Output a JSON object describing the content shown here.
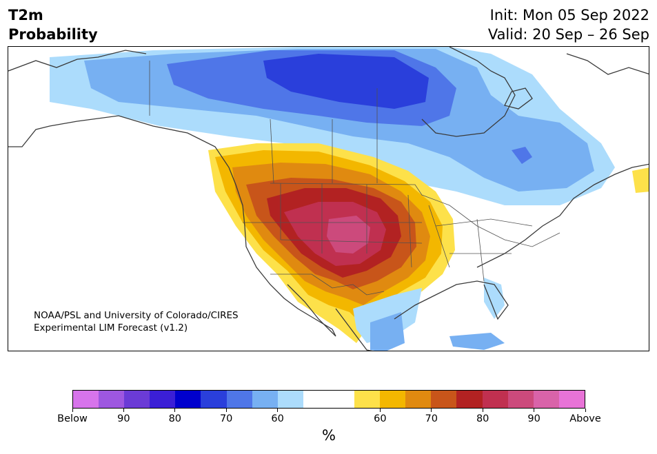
{
  "title": {
    "line1": "T2m",
    "line2": "Probability"
  },
  "dates": {
    "init": "Init: Mon 05 Sep 2022",
    "valid": "Valid: 20 Sep – 26 Sep"
  },
  "credit": {
    "line1": "NOAA/PSL and University of Colorado/CIRES",
    "line2": "Experimental LIM Forecast (v1.2)"
  },
  "colorbar": {
    "colors": [
      "#d774eb",
      "#9e57e0",
      "#6b3bd6",
      "#3b1fd6",
      "#0000cd",
      "#2a3fdb",
      "#4f76e8",
      "#77b0f2",
      "#acdcfc",
      "#ffffff",
      "#ffffff",
      "#fde14a",
      "#f3b700",
      "#e08a10",
      "#c8551a",
      "#b22222",
      "#c03050",
      "#cc4a7c",
      "#d963a9",
      "#e873d7"
    ],
    "tick_labels": [
      "Below",
      "90",
      "80",
      "70",
      "60",
      "60",
      "70",
      "80",
      "90",
      "Above"
    ],
    "unit": "%"
  },
  "map": {
    "colors": {
      "below_60": "#acdcfc",
      "below_70": "#77b0f2",
      "below_80": "#4f76e8",
      "below_90": "#2a3fdb",
      "above_60": "#fde14a",
      "above_70": "#f3b700",
      "above_80": "#e08a10",
      "above_90": "#c8551a",
      "above_100": "#b22222",
      "above_110": "#c03050",
      "above_120": "#cc4a7c"
    }
  }
}
